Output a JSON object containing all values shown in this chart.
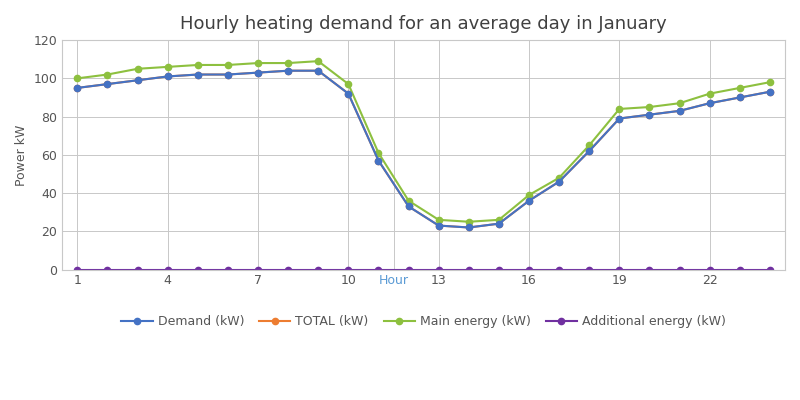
{
  "title": "Hourly heating demand for an average day in January",
  "ylabel": "Power kW",
  "hours": [
    1,
    2,
    3,
    4,
    5,
    6,
    7,
    8,
    9,
    10,
    11,
    12,
    13,
    14,
    15,
    16,
    17,
    18,
    19,
    20,
    21,
    22,
    23,
    24
  ],
  "demand": [
    95,
    97,
    99,
    101,
    102,
    102,
    103,
    104,
    104,
    92,
    57,
    33,
    23,
    22,
    24,
    36,
    46,
    62,
    79,
    81,
    83,
    87,
    90,
    93
  ],
  "total": [
    95,
    97,
    99,
    101,
    102,
    102,
    103,
    104,
    104,
    92,
    57,
    33,
    23,
    22,
    24,
    36,
    46,
    62,
    79,
    81,
    83,
    87,
    90,
    93
  ],
  "main_energy": [
    100,
    102,
    105,
    106,
    107,
    107,
    108,
    108,
    109,
    97,
    61,
    36,
    26,
    25,
    26,
    39,
    48,
    65,
    84,
    85,
    87,
    92,
    95,
    98
  ],
  "additional_energy": [
    0,
    0,
    0,
    0,
    0,
    0,
    0,
    0,
    0,
    0,
    0,
    0,
    0,
    0,
    0,
    0,
    0,
    0,
    0,
    0,
    0,
    0,
    0,
    0
  ],
  "demand_color": "#4472C4",
  "total_color": "#ED7D31",
  "main_energy_color": "#8DC03F",
  "additional_energy_color": "#7030A0",
  "ylim": [
    0,
    120
  ],
  "yticks": [
    0,
    20,
    40,
    60,
    80,
    100,
    120
  ],
  "xtick_positions": [
    1,
    4,
    7,
    10,
    11.5,
    13,
    16,
    19,
    22
  ],
  "xtick_labels": [
    "1",
    "4",
    "7",
    "10",
    "Hour",
    "13",
    "16",
    "19",
    "22"
  ],
  "background_color": "#FFFFFF",
  "grid_color": "#C8C8C8",
  "title_fontsize": 13,
  "axis_label_fontsize": 9,
  "legend_fontsize": 9
}
